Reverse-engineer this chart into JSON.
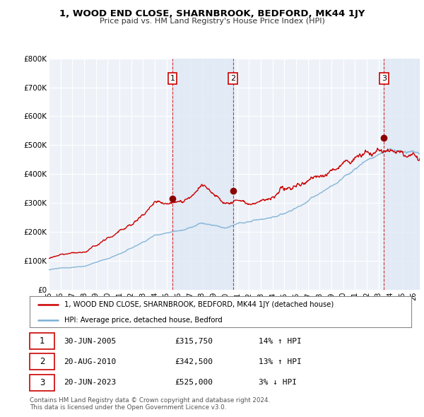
{
  "title": "1, WOOD END CLOSE, SHARNBROOK, BEDFORD, MK44 1JY",
  "subtitle": "Price paid vs. HM Land Registry's House Price Index (HPI)",
  "ylabel_ticks": [
    "£0",
    "£100K",
    "£200K",
    "£300K",
    "£400K",
    "£500K",
    "£600K",
    "£700K",
    "£800K"
  ],
  "ylim": [
    0,
    800000
  ],
  "xlim_start": 1995.0,
  "xlim_end": 2026.5,
  "sale_dates": [
    2005.5,
    2010.64,
    2023.47
  ],
  "sale_prices": [
    315750,
    342500,
    525000
  ],
  "sale_labels": [
    "1",
    "2",
    "3"
  ],
  "vline_dates": [
    2005.5,
    2010.64,
    2023.47
  ],
  "hpi_line_color": "#7bafd4",
  "price_line_color": "#cc0000",
  "vline_color": "#cc0000",
  "shade_color": "#dce8f5",
  "background_color": "#ffffff",
  "plot_bg_color": "#eef2f8",
  "grid_color": "#ffffff",
  "legend_items": [
    "1, WOOD END CLOSE, SHARNBROOK, BEDFORD, MK44 1JY (detached house)",
    "HPI: Average price, detached house, Bedford"
  ],
  "table_rows": [
    {
      "num": "1",
      "date": "30-JUN-2005",
      "price": "£315,750",
      "hpi": "14% ↑ HPI"
    },
    {
      "num": "2",
      "date": "20-AUG-2010",
      "price": "£342,500",
      "hpi": "13% ↑ HPI"
    },
    {
      "num": "3",
      "date": "20-JUN-2023",
      "price": "£525,000",
      "hpi": "3% ↓ HPI"
    }
  ],
  "footnote": "Contains HM Land Registry data © Crown copyright and database right 2024.\nThis data is licensed under the Open Government Licence v3.0.",
  "xtick_labels": [
    "95",
    "96",
    "97",
    "98",
    "99",
    "00",
    "01",
    "02",
    "03",
    "04",
    "05",
    "06",
    "07",
    "08",
    "09",
    "10",
    "11",
    "12",
    "13",
    "14",
    "15",
    "16",
    "17",
    "18",
    "19",
    "20",
    "21",
    "22",
    "23",
    "24",
    "25",
    "26"
  ],
  "xtick_values": [
    1995,
    1996,
    1997,
    1998,
    1999,
    2000,
    2001,
    2002,
    2003,
    2004,
    2005,
    2006,
    2007,
    2008,
    2009,
    2010,
    2011,
    2012,
    2013,
    2014,
    2015,
    2016,
    2017,
    2018,
    2019,
    2020,
    2021,
    2022,
    2023,
    2024,
    2025,
    2026
  ]
}
